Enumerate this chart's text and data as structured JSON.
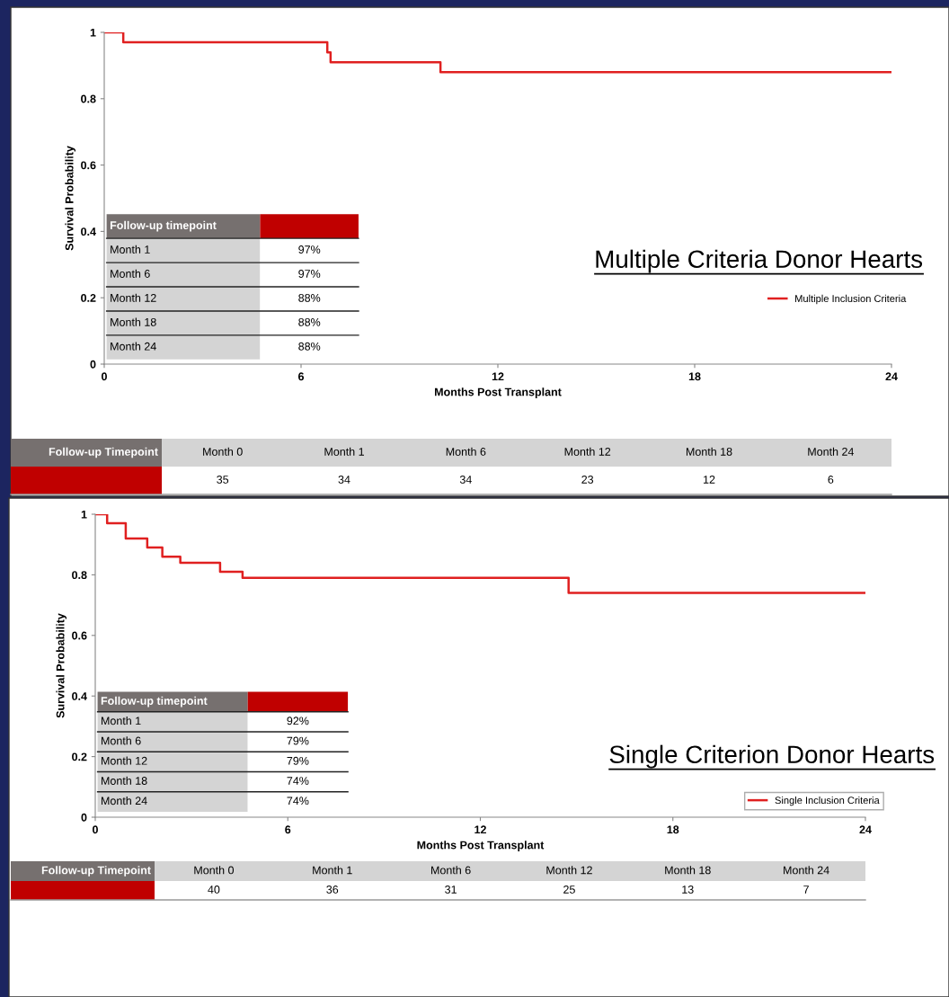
{
  "chart_data": [
    {
      "type": "step",
      "title": "Multiple Criteria Donor Hearts",
      "xlabel": "Months Post Transplant",
      "ylabel": "Survival Probability",
      "x": [
        0,
        0.58,
        6.8,
        6.9,
        10.25,
        24
      ],
      "series": [
        {
          "name": "Multiple Inclusion Criteria",
          "color": "#e02020",
          "values": [
            1,
            0.97,
            0.94,
            0.91,
            0.88,
            0.88
          ]
        }
      ],
      "xlim": [
        0,
        24
      ],
      "xticks": [
        0,
        6,
        12,
        18,
        24
      ],
      "ylim": [
        0,
        1
      ],
      "yticks": [
        0,
        0.2,
        0.4,
        0.6,
        0.8,
        1
      ],
      "legend": "right",
      "grid": false,
      "annotations": [
        "Follow-up timepoint",
        "Month 1",
        "97%",
        "Month 6",
        "97%",
        "Month 12",
        "88%",
        "Month 18",
        "88%",
        "Month 24",
        "88%",
        "Follow-up Timepoint",
        "Month 0",
        "Month 1",
        "Month 6",
        "Month 12",
        "Month 18",
        "Month 24",
        "35",
        "34",
        "34",
        "23",
        "12",
        "6"
      ]
    },
    {
      "type": "step",
      "title": "Single Criterion Donor Hearts",
      "xlabel": "Months Post Transplant",
      "ylabel": "Survival Probability",
      "x": [
        0,
        0.37,
        0.95,
        1.62,
        2.09,
        2.65,
        3.89,
        4.59,
        14.75,
        24
      ],
      "series": [
        {
          "name": "Single Inclusion Criteria",
          "color": "#e02020",
          "values": [
            1,
            0.97,
            0.92,
            0.89,
            0.86,
            0.84,
            0.81,
            0.79,
            0.74,
            0.74
          ]
        }
      ],
      "xlim": [
        0,
        24
      ],
      "xticks": [
        0,
        6,
        12,
        18,
        24
      ],
      "ylim": [
        0,
        1
      ],
      "yticks": [
        0,
        0.2,
        0.4,
        0.6,
        0.8,
        1
      ],
      "legend": "right",
      "grid": false,
      "annotations": [
        "Follow-up timepoint",
        "Month 1",
        "92%",
        "Month 6",
        "79%",
        "Month 12",
        "79%",
        "Month 18",
        "74%",
        "Month 24",
        "74%",
        "Follow-up Timepoint",
        "Month 0",
        "Month 1",
        "Month 6",
        "Month 12",
        "Month 18",
        "Month 24",
        "40",
        "36",
        "31",
        "25",
        "13",
        "7"
      ]
    }
  ]
}
